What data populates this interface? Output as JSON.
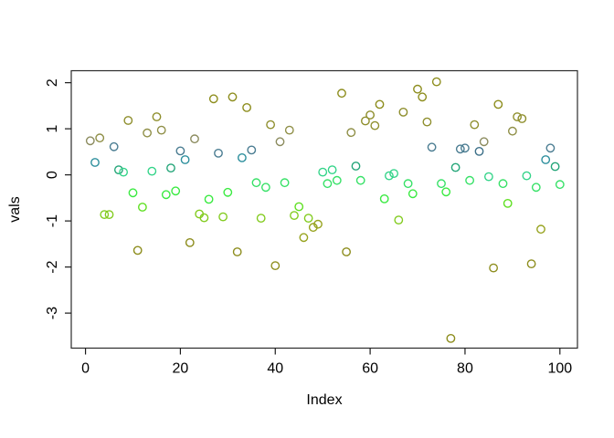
{
  "figure": {
    "background": "#ffffff",
    "box_color": "#2b2b2b",
    "tick_color": "#1a1a1a"
  },
  "chart_data": {
    "type": "scatter",
    "title": "",
    "xlabel": "Index",
    "ylabel": "vals",
    "x_ticks": [
      0,
      20,
      40,
      60,
      80,
      100
    ],
    "y_ticks": [
      -3,
      -2,
      -1,
      0,
      1,
      2
    ],
    "xlim": [
      -3.0,
      103.7
    ],
    "ylim": [
      -3.76,
      2.26
    ],
    "grid": false,
    "legend": "none",
    "marker": "open-circle",
    "points": [
      {
        "x": 1,
        "y": 0.74,
        "color": "#8b8b5e"
      },
      {
        "x": 2,
        "y": 0.27,
        "color": "#2d8f9d"
      },
      {
        "x": 3,
        "y": 0.8,
        "color": "#8f8f47"
      },
      {
        "x": 4,
        "y": -0.86,
        "color": "#82cb1e"
      },
      {
        "x": 5,
        "y": -0.86,
        "color": "#82cb1e"
      },
      {
        "x": 6,
        "y": 0.61,
        "color": "#4b7d92"
      },
      {
        "x": 7,
        "y": 0.11,
        "color": "#23a578"
      },
      {
        "x": 8,
        "y": 0.06,
        "color": "#33d489"
      },
      {
        "x": 9,
        "y": 1.18,
        "color": "#8e8e2c"
      },
      {
        "x": 10,
        "y": -0.39,
        "color": "#3aea41"
      },
      {
        "x": 11,
        "y": -1.64,
        "color": "#8d8d1d"
      },
      {
        "x": 12,
        "y": -0.7,
        "color": "#5fe022"
      },
      {
        "x": 13,
        "y": 0.91,
        "color": "#8f8f47"
      },
      {
        "x": 14,
        "y": 0.08,
        "color": "#33d489"
      },
      {
        "x": 15,
        "y": 1.26,
        "color": "#8e8e2c"
      },
      {
        "x": 16,
        "y": 0.97,
        "color": "#8f8f47"
      },
      {
        "x": 17,
        "y": -0.43,
        "color": "#3aea41"
      },
      {
        "x": 18,
        "y": 0.15,
        "color": "#23a578"
      },
      {
        "x": 19,
        "y": -0.35,
        "color": "#3aea41"
      },
      {
        "x": 20,
        "y": 0.52,
        "color": "#4b7d92"
      },
      {
        "x": 21,
        "y": 0.33,
        "color": "#2d8f9d"
      },
      {
        "x": 22,
        "y": -1.47,
        "color": "#8d8d1d"
      },
      {
        "x": 23,
        "y": 0.78,
        "color": "#8b8b5e"
      },
      {
        "x": 24,
        "y": -0.85,
        "color": "#82cb1e"
      },
      {
        "x": 25,
        "y": -0.93,
        "color": "#82cb1e"
      },
      {
        "x": 26,
        "y": -0.53,
        "color": "#3aea41"
      },
      {
        "x": 27,
        "y": 1.65,
        "color": "#8d8d1d"
      },
      {
        "x": 28,
        "y": 0.47,
        "color": "#4b7d92"
      },
      {
        "x": 29,
        "y": -0.91,
        "color": "#82cb1e"
      },
      {
        "x": 30,
        "y": -0.38,
        "color": "#3aea41"
      },
      {
        "x": 31,
        "y": 1.69,
        "color": "#8d8d1d"
      },
      {
        "x": 32,
        "y": -1.67,
        "color": "#8d8d1d"
      },
      {
        "x": 33,
        "y": 0.37,
        "color": "#2d8f9d"
      },
      {
        "x": 34,
        "y": 1.46,
        "color": "#8d8d1d"
      },
      {
        "x": 35,
        "y": 0.54,
        "color": "#4b7d92"
      },
      {
        "x": 36,
        "y": -0.17,
        "color": "#37e167"
      },
      {
        "x": 37,
        "y": -0.94,
        "color": "#82cb1e"
      },
      {
        "x": 38,
        "y": -0.27,
        "color": "#37e167"
      },
      {
        "x": 39,
        "y": 1.09,
        "color": "#8e8e2c"
      },
      {
        "x": 40,
        "y": -1.97,
        "color": "#8d8d1d"
      },
      {
        "x": 41,
        "y": 0.72,
        "color": "#8b8b5e"
      },
      {
        "x": 42,
        "y": -0.17,
        "color": "#37e167"
      },
      {
        "x": 43,
        "y": 0.97,
        "color": "#8f8f47"
      },
      {
        "x": 44,
        "y": -0.88,
        "color": "#82cb1e"
      },
      {
        "x": 45,
        "y": -0.69,
        "color": "#5fe022"
      },
      {
        "x": 46,
        "y": -1.36,
        "color": "#97a31f"
      },
      {
        "x": 47,
        "y": -0.94,
        "color": "#82cb1e"
      },
      {
        "x": 48,
        "y": -1.14,
        "color": "#97a31f"
      },
      {
        "x": 49,
        "y": -1.07,
        "color": "#97a31f"
      },
      {
        "x": 50,
        "y": 0.06,
        "color": "#33d489"
      },
      {
        "x": 51,
        "y": -0.19,
        "color": "#37e167"
      },
      {
        "x": 52,
        "y": 0.11,
        "color": "#33d489"
      },
      {
        "x": 53,
        "y": -0.12,
        "color": "#37e167"
      },
      {
        "x": 54,
        "y": 1.77,
        "color": "#8d8d1d"
      },
      {
        "x": 55,
        "y": -1.67,
        "color": "#8d8d1d"
      },
      {
        "x": 56,
        "y": 0.92,
        "color": "#8f8f47"
      },
      {
        "x": 57,
        "y": 0.19,
        "color": "#23a578"
      },
      {
        "x": 58,
        "y": -0.12,
        "color": "#37e167"
      },
      {
        "x": 59,
        "y": 1.17,
        "color": "#8e8e2c"
      },
      {
        "x": 60,
        "y": 1.3,
        "color": "#8e8e2c"
      },
      {
        "x": 61,
        "y": 1.07,
        "color": "#8e8e2c"
      },
      {
        "x": 62,
        "y": 1.53,
        "color": "#8d8d1d"
      },
      {
        "x": 63,
        "y": -0.52,
        "color": "#3aea41"
      },
      {
        "x": 64,
        "y": -0.02,
        "color": "#33d489"
      },
      {
        "x": 65,
        "y": 0.03,
        "color": "#33d489"
      },
      {
        "x": 66,
        "y": -0.98,
        "color": "#82cb1e"
      },
      {
        "x": 67,
        "y": 1.36,
        "color": "#8e8e2c"
      },
      {
        "x": 68,
        "y": -0.19,
        "color": "#37e167"
      },
      {
        "x": 69,
        "y": -0.41,
        "color": "#3aea41"
      },
      {
        "x": 70,
        "y": 1.86,
        "color": "#8d8d1d"
      },
      {
        "x": 71,
        "y": 1.69,
        "color": "#8d8d1d"
      },
      {
        "x": 72,
        "y": 1.15,
        "color": "#8e8e2c"
      },
      {
        "x": 73,
        "y": 0.6,
        "color": "#4b7d92"
      },
      {
        "x": 74,
        "y": 2.02,
        "color": "#8d8d1d"
      },
      {
        "x": 75,
        "y": -0.19,
        "color": "#37e167"
      },
      {
        "x": 76,
        "y": -0.37,
        "color": "#3aea41"
      },
      {
        "x": 77,
        "y": -3.55,
        "color": "#8d8d1d"
      },
      {
        "x": 78,
        "y": 0.16,
        "color": "#23a578"
      },
      {
        "x": 79,
        "y": 0.56,
        "color": "#4b7d92"
      },
      {
        "x": 80,
        "y": 0.58,
        "color": "#4b7d92"
      },
      {
        "x": 81,
        "y": -0.12,
        "color": "#37e167"
      },
      {
        "x": 82,
        "y": 1.09,
        "color": "#8e8e2c"
      },
      {
        "x": 83,
        "y": 0.51,
        "color": "#3d7089"
      },
      {
        "x": 84,
        "y": 0.72,
        "color": "#8b8b5e"
      },
      {
        "x": 85,
        "y": -0.04,
        "color": "#33d489"
      },
      {
        "x": 86,
        "y": -2.02,
        "color": "#8d8d1d"
      },
      {
        "x": 87,
        "y": 1.53,
        "color": "#8d8d1d"
      },
      {
        "x": 88,
        "y": -0.19,
        "color": "#37e167"
      },
      {
        "x": 89,
        "y": -0.62,
        "color": "#5fe022"
      },
      {
        "x": 90,
        "y": 0.95,
        "color": "#8f8f47"
      },
      {
        "x": 91,
        "y": 1.26,
        "color": "#8e8e2c"
      },
      {
        "x": 92,
        "y": 1.22,
        "color": "#8e8e2c"
      },
      {
        "x": 93,
        "y": -0.02,
        "color": "#33d489"
      },
      {
        "x": 94,
        "y": -1.93,
        "color": "#8d8d1d"
      },
      {
        "x": 95,
        "y": -0.27,
        "color": "#37e167"
      },
      {
        "x": 96,
        "y": -1.18,
        "color": "#97a31f"
      },
      {
        "x": 97,
        "y": 0.33,
        "color": "#2d8f9d"
      },
      {
        "x": 98,
        "y": 0.58,
        "color": "#4b7d92"
      },
      {
        "x": 99,
        "y": 0.18,
        "color": "#23a578"
      },
      {
        "x": 100,
        "y": -0.21,
        "color": "#37e167"
      }
    ]
  }
}
